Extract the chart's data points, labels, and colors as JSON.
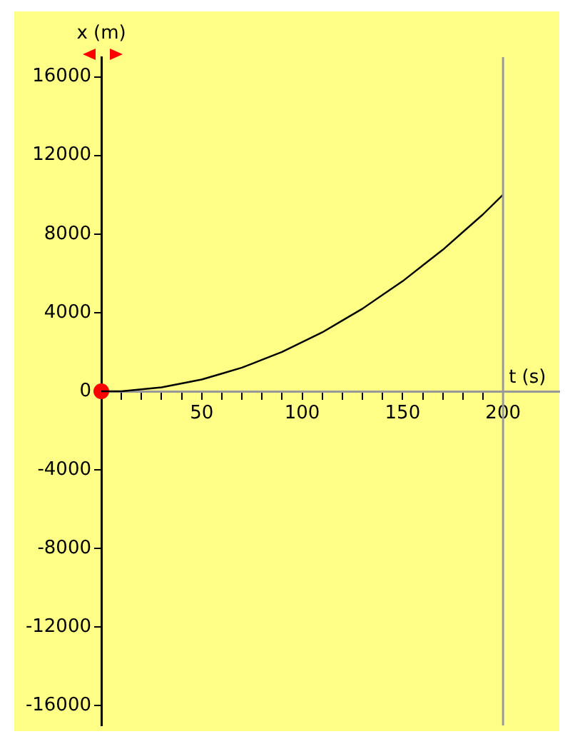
{
  "chart_data": {
    "type": "line",
    "xlabel": "t (s)",
    "ylabel": "x (m)",
    "x": [
      0,
      10,
      20,
      30,
      40,
      50,
      60,
      70,
      80,
      90,
      100,
      110,
      120,
      130,
      140,
      150,
      160,
      170,
      180,
      190,
      200
    ],
    "series": [
      {
        "color": "#000000",
        "marker": "none",
        "values": [
          0,
          0,
          100,
          200,
          400,
          600,
          900,
          1200,
          1600,
          2000,
          2500,
          3000,
          3600,
          4200,
          4900,
          5600,
          6400,
          7200,
          8100,
          9000,
          10000
        ]
      },
      {
        "type": "scatter",
        "color": "#ff0000",
        "marker": "circle",
        "x": [
          0
        ],
        "values": [
          0
        ]
      }
    ],
    "xlim": [
      0,
      228
    ],
    "xticks": [
      {
        "value": 10,
        "label": null
      },
      {
        "value": 20,
        "label": null
      },
      {
        "value": 30,
        "label": null
      },
      {
        "value": 40,
        "label": null
      },
      50,
      {
        "value": 60,
        "label": null
      },
      {
        "value": 70,
        "label": null
      },
      {
        "value": 80,
        "label": null
      },
      {
        "value": 90,
        "label": null
      },
      100,
      {
        "value": 110,
        "label": null
      },
      {
        "value": 120,
        "label": null
      },
      {
        "value": 130,
        "label": null
      },
      {
        "value": 140,
        "label": null
      },
      150,
      {
        "value": 160,
        "label": null
      },
      {
        "value": 170,
        "label": null
      },
      {
        "value": 180,
        "label": null
      },
      {
        "value": 190,
        "label": null
      },
      200
    ],
    "ylim": [
      -17000,
      17000
    ],
    "yticks": [
      -16000,
      -12000,
      -8000,
      -4000,
      0,
      4000,
      8000,
      12000,
      16000
    ],
    "ref_lines": [
      {
        "axis": "x",
        "value": 200,
        "color": "#999999"
      }
    ],
    "grid": false,
    "legend": false
  }
}
